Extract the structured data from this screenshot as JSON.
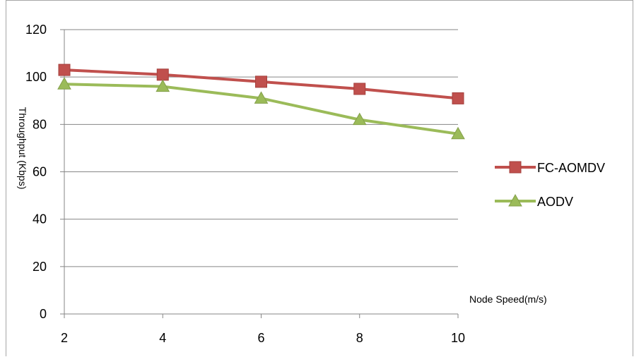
{
  "chart_data": {
    "type": "line",
    "x": [
      2,
      4,
      6,
      8,
      10
    ],
    "categories": [
      "2",
      "4",
      "6",
      "8",
      "10"
    ],
    "series": [
      {
        "name": "FC-AOMDV",
        "values": [
          103,
          101,
          98,
          95,
          91
        ],
        "color": "#c0504d",
        "marker": "square"
      },
      {
        "name": "AODV",
        "values": [
          97,
          96,
          91,
          82,
          76
        ],
        "color": "#9bbb59",
        "marker": "triangle"
      }
    ],
    "title": "",
    "xlabel": "Node Speed(m/s)",
    "ylabel": "Throughput (Kbps)",
    "ylim": [
      0,
      120
    ],
    "yticks": [
      0,
      20,
      40,
      60,
      80,
      100,
      120
    ],
    "grid": true,
    "legend_position": "right"
  }
}
